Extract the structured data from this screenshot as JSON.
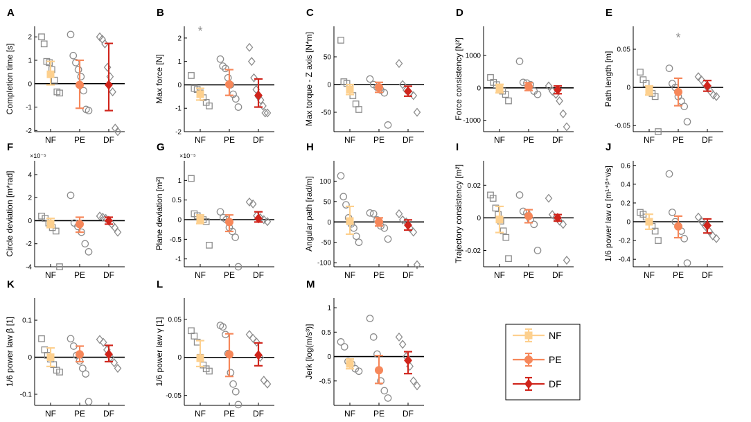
{
  "figure": {
    "categories": [
      "NF",
      "PE",
      "DF"
    ],
    "colors": {
      "NF": "#fdd08e",
      "PE": "#f6875a",
      "DF": "#d0251c",
      "points": "#8c8c8c",
      "axis": "#000000"
    },
    "legend": {
      "entries": [
        "NF",
        "PE",
        "DF"
      ],
      "placement": "right of panel M"
    }
  },
  "chart_data": [
    {
      "letter": "A",
      "type": "scatter",
      "ylabel": "Completion time [s]",
      "ylim": [
        -2.05,
        2.45
      ],
      "yticks": [
        -2,
        -1,
        0,
        1,
        2
      ],
      "yticklabels": [
        "-2",
        "-1",
        "0",
        "1",
        "2"
      ],
      "exponent": "",
      "marker": "square",
      "means": [
        0.4,
        -0.05,
        -0.05
      ],
      "ci": [
        [
          -0.05,
          0.95
        ],
        [
          -1.05,
          1.0
        ],
        [
          -1.15,
          1.72
        ]
      ],
      "points": [
        [
          2.0,
          1.7,
          0.95,
          0.9,
          0.6,
          0.15,
          -0.35,
          -0.4
        ],
        [
          2.1,
          1.2,
          0.9,
          0.6,
          0.3,
          -0.3,
          -1.1,
          -1.15
        ],
        [
          2.0,
          1.9,
          1.7,
          0.7,
          0.3,
          -0.35,
          -1.9,
          -2.05
        ]
      ],
      "outliers": []
    },
    {
      "letter": "B",
      "type": "scatter",
      "ylabel": "Max force [N]",
      "ylim": [
        -2,
        2.5
      ],
      "yticks": [
        -2,
        -1,
        0,
        1,
        2
      ],
      "yticklabels": [
        "-2",
        "-1",
        "0",
        "1",
        "2"
      ],
      "exponent": "",
      "marker": "square",
      "means": [
        -0.4,
        0.02,
        -0.45
      ],
      "ci": [
        [
          -0.65,
          -0.15
        ],
        [
          -0.45,
          0.65
        ],
        [
          -0.95,
          0.25
        ]
      ],
      "points": [
        [
          0.4,
          -0.15,
          -0.2,
          -0.35,
          -0.55,
          -0.75,
          -0.9
        ],
        [
          1.1,
          0.8,
          0.7,
          0.3,
          0.0,
          -0.4,
          -0.6,
          -0.95
        ],
        [
          1.6,
          1.0,
          0.3,
          -0.2,
          -0.5,
          -0.65,
          -0.9,
          -1.2,
          -1.2
        ]
      ],
      "outliers": [
        {
          "group": 0,
          "y": 2.35
        }
      ]
    },
    {
      "letter": "C",
      "type": "scatter",
      "ylabel": "Max torque - Z axis [N*m]",
      "ylim": [
        -85,
        105
      ],
      "yticks": [
        -50,
        0,
        50
      ],
      "yticklabels": [
        "-50",
        "0",
        "50"
      ],
      "exponent": "",
      "marker": "square",
      "means": [
        -9,
        -5,
        -12
      ],
      "ci": [
        [
          -18,
          0
        ],
        [
          -14,
          4
        ],
        [
          -21,
          -3
        ]
      ],
      "points": [
        [
          80,
          5,
          2,
          -5,
          -20,
          -35,
          -45
        ],
        [
          10,
          0,
          -5,
          -10,
          -15,
          -73
        ],
        [
          38,
          0,
          -10,
          -15,
          -20,
          -50
        ]
      ],
      "outliers": []
    },
    {
      "letter": "D",
      "type": "scatter",
      "ylabel": "Force consistency [N²]",
      "ylim": [
        -1350,
        1900
      ],
      "yticks": [
        -1000,
        0,
        1000
      ],
      "yticklabels": [
        "-1000",
        "0",
        "1000"
      ],
      "exponent": "",
      "marker": "square",
      "means": [
        -20,
        40,
        -60
      ],
      "ci": [
        [
          -150,
          110
        ],
        [
          -80,
          160
        ],
        [
          -180,
          60
        ]
      ],
      "points": [
        [
          320,
          170,
          100,
          20,
          -100,
          -200,
          -400
        ],
        [
          820,
          170,
          150,
          100,
          -100,
          -200
        ],
        [
          60,
          -100,
          -200,
          -400,
          -800,
          -1200
        ]
      ],
      "outliers": []
    },
    {
      "letter": "E",
      "type": "scatter",
      "ylabel": "Path length [m]",
      "ylim": [
        -0.058,
        0.08
      ],
      "yticks": [
        -0.05,
        0,
        0.05
      ],
      "yticklabels": [
        "-0.05",
        "0",
        "0.05"
      ],
      "exponent": "",
      "marker": "square",
      "means": [
        -0.004,
        -0.006,
        0.002
      ],
      "ci": [
        [
          -0.01,
          0.002
        ],
        [
          -0.024,
          0.012
        ],
        [
          -0.005,
          0.009
        ]
      ],
      "points": [
        [
          0.02,
          0.01,
          0.005,
          -0.002,
          -0.008,
          -0.012,
          -0.058
        ],
        [
          0.025,
          0.005,
          0.0,
          -0.012,
          -0.018,
          -0.025,
          -0.045
        ],
        [
          0.014,
          0.01,
          0.005,
          0.0,
          -0.005,
          -0.01,
          -0.012
        ]
      ],
      "outliers": [
        {
          "group": 1,
          "y": 0.067
        }
      ]
    },
    {
      "letter": "F",
      "type": "scatter",
      "ylabel": "Circle deviation [m*rad]",
      "ylim": [
        -4,
        5.2
      ],
      "yticks": [
        -4,
        -2,
        0,
        2,
        4
      ],
      "yticklabels": [
        "-4",
        "-2",
        "0",
        "2",
        "4"
      ],
      "exponent": "×10⁻⁵",
      "marker": "square",
      "means": [
        -0.25,
        -0.3,
        0.0
      ],
      "ci": [
        [
          -0.6,
          0.2
        ],
        [
          -1.0,
          0.3
        ],
        [
          -0.3,
          0.3
        ]
      ],
      "points": [
        [
          0.4,
          0.2,
          -0.2,
          -0.6,
          -0.9,
          -4.0
        ],
        [
          2.2,
          -0.2,
          -0.5,
          -1.0,
          -2.0,
          -2.7
        ],
        [
          0.4,
          0.3,
          0.2,
          0.0,
          -0.3,
          -0.6,
          -1.0
        ]
      ],
      "outliers": []
    },
    {
      "letter": "G",
      "type": "scatter",
      "ylabel": "Plane deviation [m²]",
      "ylim": [
        -1.2,
        1.5
      ],
      "yticks": [
        -1,
        -0.5,
        0,
        0.5,
        1
      ],
      "yticklabels": [
        "-1",
        "-0.5",
        "0",
        "0.5",
        "1"
      ],
      "exponent": "×10⁻⁵",
      "marker": "square",
      "means": [
        0.0,
        -0.06,
        0.03
      ],
      "ci": [
        [
          -0.1,
          0.12
        ],
        [
          -0.3,
          0.12
        ],
        [
          -0.06,
          0.2
        ]
      ],
      "points": [
        [
          1.05,
          0.15,
          0.1,
          0.05,
          0.0,
          -0.05,
          -0.65
        ],
        [
          0.2,
          0.05,
          0.0,
          -0.2,
          -0.3,
          -0.45,
          -1.2
        ],
        [
          0.45,
          0.4,
          0.1,
          0.05,
          0.0,
          -0.05
        ]
      ],
      "outliers": []
    },
    {
      "letter": "H",
      "type": "scatter",
      "ylabel": "Angular path [rad/m]",
      "ylim": [
        -110,
        150
      ],
      "yticks": [
        -100,
        -50,
        0,
        50,
        100
      ],
      "yticklabels": [
        "-100",
        "-50",
        "0",
        "50",
        "100"
      ],
      "exponent": "",
      "marker": "circle",
      "means": [
        2,
        0,
        -8
      ],
      "ci": [
        [
          -30,
          38
        ],
        [
          -10,
          10
        ],
        [
          -20,
          5
        ]
      ],
      "points": [
        [
          113,
          62,
          42,
          10,
          -5,
          -15,
          -35,
          -50
        ],
        [
          22,
          20,
          5,
          -10,
          -15,
          -42
        ],
        [
          20,
          5,
          0,
          -15,
          -25,
          -105
        ]
      ],
      "outliers": []
    },
    {
      "letter": "I",
      "type": "scatter",
      "ylabel": "Trajectory consistency [m²]",
      "ylim": [
        -0.03,
        0.035
      ],
      "yticks": [
        -0.02,
        0,
        0.02
      ],
      "yticklabels": [
        "-0.02",
        "0",
        "0.02"
      ],
      "exponent": "",
      "marker": "square",
      "means": [
        -0.001,
        0.001,
        0.0
      ],
      "ci": [
        [
          -0.009,
          0.007
        ],
        [
          -0.003,
          0.005
        ],
        [
          -0.002,
          0.002
        ]
      ],
      "points": [
        [
          0.014,
          0.012,
          0.006,
          0.002,
          -0.002,
          -0.008,
          -0.012,
          -0.025
        ],
        [
          0.014,
          0.004,
          0.003,
          -0.001,
          -0.004,
          -0.02
        ],
        [
          0.012,
          0.002,
          0.0,
          -0.002,
          -0.004,
          -0.026
        ]
      ],
      "outliers": []
    },
    {
      "letter": "J",
      "type": "scatter",
      "ylabel": "1/6 power law α [m¹⁺ᵝ⁺ᵞ/s]",
      "ylim": [
        -0.48,
        0.65
      ],
      "yticks": [
        -0.4,
        -0.2,
        0,
        0.2,
        0.4,
        0.6
      ],
      "yticklabels": [
        "-0.4",
        "-0.2",
        "0",
        "0.2",
        "0.4",
        "0.6"
      ],
      "exponent": "",
      "marker": "square",
      "means": [
        0.0,
        -0.05,
        -0.04
      ],
      "ci": [
        [
          -0.08,
          0.08
        ],
        [
          -0.17,
          0.06
        ],
        [
          -0.12,
          0.03
        ]
      ],
      "points": [
        [
          0.1,
          0.08,
          0.05,
          0.0,
          -0.05,
          -0.1,
          -0.2
        ],
        [
          0.51,
          0.1,
          0.0,
          -0.05,
          -0.1,
          -0.18,
          -0.44
        ],
        [
          0.05,
          0.0,
          -0.05,
          -0.1,
          -0.15,
          -0.18
        ]
      ],
      "outliers": []
    },
    {
      "letter": "K",
      "type": "scatter",
      "ylabel": "1/6 power law β [1]",
      "ylim": [
        -0.13,
        0.16
      ],
      "yticks": [
        -0.1,
        0,
        0.1
      ],
      "yticklabels": [
        "-0.1",
        "0",
        "0.1"
      ],
      "exponent": "",
      "marker": "square",
      "means": [
        0.0,
        0.008,
        0.008
      ],
      "ci": [
        [
          -0.025,
          0.025
        ],
        [
          -0.012,
          0.03
        ],
        [
          -0.012,
          0.032
        ]
      ],
      "points": [
        [
          0.05,
          0.02,
          0.005,
          -0.005,
          -0.02,
          -0.035,
          -0.04
        ],
        [
          0.05,
          0.03,
          0.005,
          -0.01,
          -0.03,
          -0.045,
          -0.12
        ],
        [
          0.048,
          0.04,
          0.02,
          0.0,
          -0.015,
          -0.03
        ]
      ],
      "outliers": []
    },
    {
      "letter": "L",
      "type": "scatter",
      "ylabel": "1/6 power law γ [1]",
      "ylim": [
        -0.063,
        0.078
      ],
      "yticks": [
        -0.05,
        0,
        0.05
      ],
      "yticklabels": [
        "-0.05",
        "0",
        "0.05"
      ],
      "exponent": "",
      "marker": "square",
      "means": [
        -0.001,
        0.004,
        0.003
      ],
      "ci": [
        [
          -0.012,
          0.022
        ],
        [
          -0.025,
          0.031
        ],
        [
          -0.011,
          0.019
        ]
      ],
      "points": [
        [
          0.035,
          0.028,
          0.02,
          0.0,
          -0.01,
          -0.015,
          -0.018
        ],
        [
          0.042,
          0.04,
          0.03,
          0.005,
          -0.02,
          -0.035,
          -0.045,
          -0.062
        ],
        [
          0.03,
          0.025,
          0.02,
          0.0,
          -0.03,
          -0.035
        ]
      ],
      "outliers": []
    },
    {
      "letter": "M",
      "type": "scatter",
      "ylabel": "Jerk [log(m/s³)]",
      "ylim": [
        -1,
        1.2
      ],
      "yticks": [
        -0.5,
        0,
        0.5,
        1
      ],
      "yticklabels": [
        "-0.5",
        "0",
        "0.5",
        "1"
      ],
      "exponent": "",
      "marker": "circle",
      "means": [
        -0.15,
        -0.28,
        -0.08
      ],
      "ci": [
        [
          -0.25,
          -0.05
        ],
        [
          -0.55,
          0.02
        ],
        [
          -0.35,
          0.1
        ]
      ],
      "points": [
        [
          0.3,
          0.2,
          -0.1,
          -0.15,
          -0.25,
          -0.3
        ],
        [
          0.78,
          0.4,
          0.05,
          -0.5,
          -0.7,
          -0.85
        ],
        [
          0.4,
          0.25,
          0.0,
          -0.2,
          -0.5,
          -0.6
        ]
      ],
      "outliers": []
    }
  ]
}
